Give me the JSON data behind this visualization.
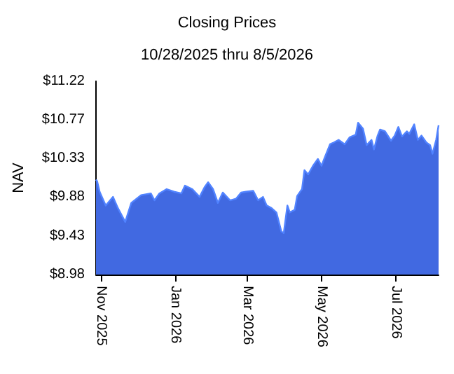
{
  "chart_data": {
    "type": "area",
    "title": "Closing Prices",
    "subtitle": "10/28/2025 thru 8/5/2026",
    "ylabel": "NAV",
    "xlim": [
      "2025-10-28",
      "2026-08-05"
    ],
    "xticks": [
      {
        "value": "2025-11-01",
        "label": "Nov 2025"
      },
      {
        "value": "2026-01-01",
        "label": "Jan 2026"
      },
      {
        "value": "2026-03-01",
        "label": "Mar 2026"
      },
      {
        "value": "2026-05-01",
        "label": "May 2026"
      },
      {
        "value": "2026-07-01",
        "label": "Jul 2026"
      }
    ],
    "ylim": [
      8.98,
      11.22
    ],
    "yticks": [
      {
        "value": 8.98,
        "label": "$8.98"
      },
      {
        "value": 9.43,
        "label": "$9.43"
      },
      {
        "value": 9.88,
        "label": "$9.88"
      },
      {
        "value": 10.33,
        "label": "$10.33"
      },
      {
        "value": 10.77,
        "label": "$10.77"
      },
      {
        "value": 11.22,
        "label": "$11.22"
      }
    ],
    "grid": false,
    "x": [
      "2025-10-28",
      "2025-10-29",
      "2025-10-31",
      "2025-11-05",
      "2025-11-11",
      "2025-11-15",
      "2025-11-21",
      "2025-11-26",
      "2025-12-04",
      "2025-12-12",
      "2025-12-15",
      "2025-12-19",
      "2025-12-25",
      "2025-12-31",
      "2026-01-06",
      "2026-01-09",
      "2026-01-15",
      "2026-01-21",
      "2026-01-25",
      "2026-01-28",
      "2026-02-01",
      "2026-02-05",
      "2026-02-09",
      "2026-02-15",
      "2026-02-20",
      "2026-02-24",
      "2026-02-28",
      "2026-03-06",
      "2026-03-10",
      "2026-03-14",
      "2026-03-17",
      "2026-03-21",
      "2026-03-25",
      "2026-03-29",
      "2026-03-31",
      "2026-04-03",
      "2026-04-05",
      "2026-04-09",
      "2026-04-11",
      "2026-04-15",
      "2026-04-17",
      "2026-04-20",
      "2026-04-24",
      "2026-04-28",
      "2026-05-01",
      "2026-05-04",
      "2026-05-08",
      "2026-05-11",
      "2026-05-15",
      "2026-05-20",
      "2026-05-24",
      "2026-05-29",
      "2026-05-31",
      "2026-06-04",
      "2026-06-07",
      "2026-06-11",
      "2026-06-13",
      "2026-06-16",
      "2026-06-18",
      "2026-06-22",
      "2026-06-27",
      "2026-06-30",
      "2026-07-03",
      "2026-07-06",
      "2026-07-10",
      "2026-07-12",
      "2026-07-16",
      "2026-07-19",
      "2026-07-22",
      "2026-07-26",
      "2026-07-29",
      "2026-07-31",
      "2026-08-03",
      "2026-08-05"
    ],
    "series": [
      {
        "color": "#4169e1",
        "values": [
          10.08,
          10.06,
          9.94,
          9.78,
          9.88,
          9.75,
          9.59,
          9.81,
          9.9,
          9.92,
          9.84,
          9.92,
          9.97,
          9.94,
          9.92,
          10.01,
          9.97,
          9.88,
          9.99,
          10.05,
          9.97,
          9.81,
          9.93,
          9.84,
          9.86,
          9.93,
          9.94,
          9.95,
          9.84,
          9.88,
          9.78,
          9.75,
          9.7,
          9.48,
          9.46,
          9.78,
          9.7,
          9.73,
          9.89,
          9.97,
          10.19,
          10.14,
          10.24,
          10.32,
          10.24,
          10.35,
          10.49,
          10.51,
          10.54,
          10.49,
          10.57,
          10.6,
          10.74,
          10.67,
          10.48,
          10.54,
          10.43,
          10.59,
          10.66,
          10.64,
          10.53,
          10.59,
          10.69,
          10.58,
          10.64,
          10.61,
          10.72,
          10.54,
          10.59,
          10.51,
          10.48,
          10.38,
          10.54,
          10.71
        ]
      }
    ]
  }
}
